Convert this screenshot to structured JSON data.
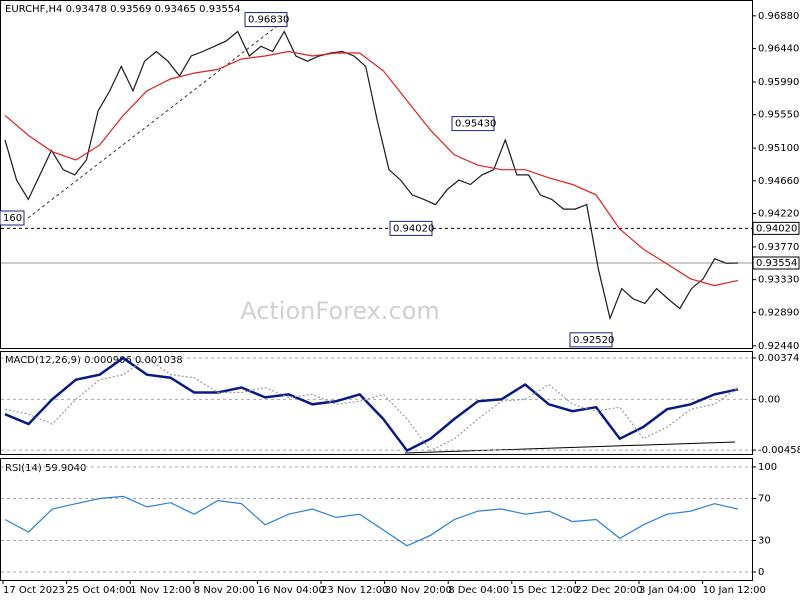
{
  "chart_data": [
    {
      "type": "line",
      "title": "EURCHF,H4 0.93478 0.93569 0.93465 0.93554",
      "watermark": "ActionForex.com",
      "ylim": [
        0.9241,
        0.9708
      ],
      "yticks": [
        {
          "value": 0.9688,
          "label": "0.96880"
        },
        {
          "value": 0.9644,
          "label": "0.96440"
        },
        {
          "value": 0.9599,
          "label": "0.95990"
        },
        {
          "value": 0.9555,
          "label": "0.95550"
        },
        {
          "value": 0.951,
          "label": "0.95100"
        },
        {
          "value": 0.9466,
          "label": "0.94660"
        },
        {
          "value": 0.9422,
          "label": "0.94220"
        },
        {
          "value": 0.9377,
          "label": "0.93770"
        },
        {
          "value": 0.9333,
          "label": "0.93330"
        },
        {
          "value": 0.9289,
          "label": "0.92890"
        },
        {
          "value": 0.9244,
          "label": "0.92440"
        }
      ],
      "series": [
        {
          "color": "#1a1a1a",
          "values": [
            0.9521,
            0.9467,
            0.9441,
            0.9474,
            0.9507,
            0.9481,
            0.9474,
            0.9494,
            0.956,
            0.9587,
            0.962,
            0.9587,
            0.9627,
            0.964,
            0.9627,
            0.9607,
            0.9634,
            0.964,
            0.9647,
            0.9654,
            0.9667,
            0.9634,
            0.9647,
            0.964,
            0.9667,
            0.9634,
            0.9627,
            0.9634,
            0.9638,
            0.964,
            0.9634,
            0.962,
            0.9547,
            0.9481,
            0.9467,
            0.9447,
            0.9441,
            0.9434,
            0.9454,
            0.9467,
            0.9461,
            0.9474,
            0.9481,
            0.9521,
            0.9474,
            0.9474,
            0.9447,
            0.9441,
            0.9428,
            0.9428,
            0.9434,
            0.9347,
            0.9281,
            0.9321,
            0.9307,
            0.9301,
            0.9321,
            0.9307,
            0.9294,
            0.9321,
            0.9334,
            0.9361,
            0.9355,
            0.93554
          ]
        },
        {
          "color": "#e02020",
          "values": [
            0.9554,
            0.9527,
            0.9505,
            0.9494,
            0.9514,
            0.9554,
            0.9587,
            0.9603,
            0.9611,
            0.9616,
            0.963,
            0.9634,
            0.964,
            0.9634,
            0.9638,
            0.9638,
            0.9614,
            0.9574,
            0.9534,
            0.9501,
            0.9487,
            0.9481,
            0.9481,
            0.947,
            0.9461,
            0.9447,
            0.9401,
            0.9374,
            0.9354,
            0.9334,
            0.9325,
            0.9332
          ]
        }
      ],
      "annotations": [
        {
          "text": "0.96830",
          "value": 0.9683
        },
        {
          "text": "0.95430",
          "value": 0.9543
        },
        {
          "text": "0.94020",
          "value": 0.9402
        },
        {
          "text": "0.92520",
          "value": 0.9252
        },
        {
          "text": "160"
        }
      ],
      "hlines": [
        {
          "value": 0.9402,
          "label": "0.94020",
          "style": "dashed"
        },
        {
          "value": 0.93554,
          "label": "0.93554",
          "style": "solid"
        }
      ]
    },
    {
      "type": "line",
      "title": "MACD(12,26,9) 0.000906 0.001038",
      "ylim": [
        -0.00494,
        0.00428
      ],
      "yticks": [
        0.003743,
        {
          "value": 0,
          "label": "0.00"
        },
        -0.004585
      ],
      "series": [
        {
          "color": "#0a1a80",
          "values": [
            -0.00134,
            -0.00223,
            0,
            0.00178,
            0.00223,
            0.00374,
            0.00223,
            0.00196,
            0.00062,
            0.00062,
            0.00107,
            0.00018,
            0.00045,
            -0.00045,
            -0.00018,
            0.00045,
            -0.00178,
            -0.00463,
            -0.00356,
            -0.00178,
            -0.00018,
            0,
            0.00134,
            -0.00045,
            -0.00107,
            -0.00071,
            -0.00356,
            -0.00249,
            -0.00089,
            -0.00045,
            0.00045,
            0.000906
          ]
        },
        {
          "color": "#999999",
          "values": [
            -0.0009,
            -0.00134,
            -0.00223,
            0,
            0.00178,
            0.00223,
            0.00374,
            0.00223,
            0.00196,
            0.00062,
            0.00062,
            0.00107,
            0.00018,
            0.00045,
            -0.00045,
            -0.00018,
            0.00045,
            -0.00178,
            -0.00463,
            -0.00356,
            -0.00178,
            -0.00018,
            0,
            0.00134,
            -0.00045,
            -0.00107,
            -0.00071,
            -0.00356,
            -0.00249,
            -0.00089,
            -0.00045,
            0.001038
          ]
        }
      ]
    },
    {
      "type": "line",
      "title": "RSI(14) 59.9040",
      "ylim": [
        -7.6,
        107.6
      ],
      "yticks": [
        100,
        70,
        30,
        0
      ],
      "series": [
        {
          "color": "#2a7fd4",
          "values": [
            50,
            38,
            60,
            65,
            70,
            72,
            62,
            66,
            55,
            68,
            65,
            45,
            55,
            60,
            52,
            55,
            40,
            25,
            35,
            50,
            58,
            60,
            55,
            58,
            48,
            50,
            32,
            45,
            55,
            58,
            65,
            59.904
          ]
        }
      ],
      "x_labels": [
        "17 Oct 2023",
        "25 Oct 04:00",
        "1 Nov 12:00",
        "8 Nov 20:00",
        "16 Nov 04:00",
        "23 Nov 12:00",
        "30 Nov 20:00",
        "8 Dec 04:00",
        "15 Dec 12:00",
        "22 Dec 20:00",
        "3 Jan 04:00",
        "10 Jan 12:00"
      ]
    }
  ]
}
